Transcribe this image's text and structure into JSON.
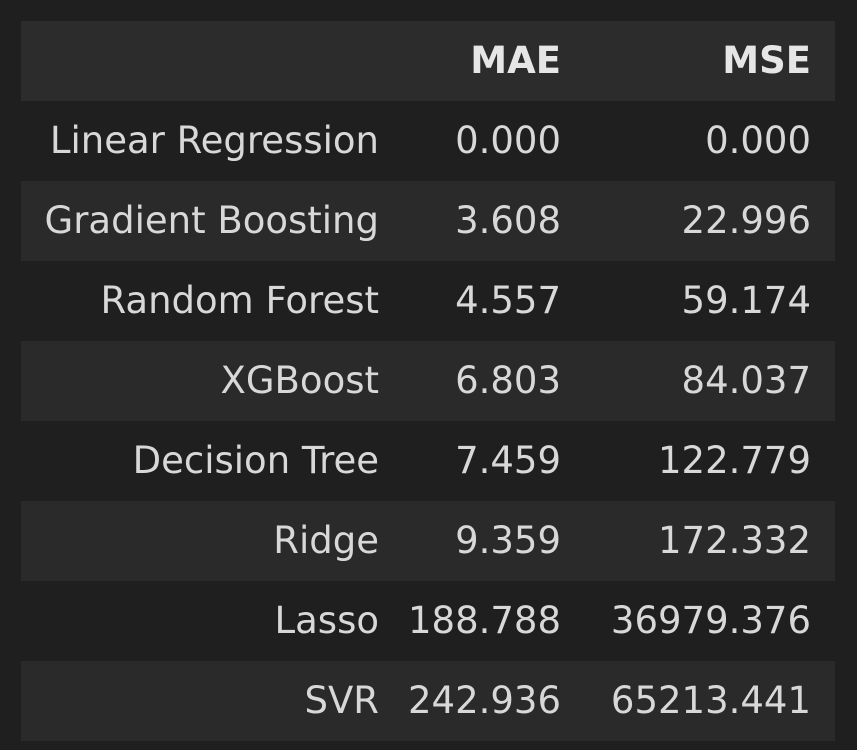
{
  "table": {
    "columns": [
      "",
      "MAE",
      "MSE"
    ],
    "rows": [
      {
        "model": "Linear Regression",
        "mae": "0.000",
        "mse": "0.000"
      },
      {
        "model": "Gradient Boosting",
        "mae": "3.608",
        "mse": "22.996"
      },
      {
        "model": "Random Forest",
        "mae": "4.557",
        "mse": "59.174"
      },
      {
        "model": "XGBoost",
        "mae": "6.803",
        "mse": "84.037"
      },
      {
        "model": "Decision Tree",
        "mae": "7.459",
        "mse": "122.779"
      },
      {
        "model": "Ridge",
        "mae": "9.359",
        "mse": "172.332"
      },
      {
        "model": "Lasso",
        "mae": "188.788",
        "mse": "36979.376"
      },
      {
        "model": "SVR",
        "mae": "242.936",
        "mse": "65213.441"
      }
    ]
  },
  "chart_data": {
    "type": "table",
    "columns": [
      "MAE",
      "MSE"
    ],
    "index": [
      "Linear Regression",
      "Gradient Boosting",
      "Random Forest",
      "XGBoost",
      "Decision Tree",
      "Ridge",
      "Lasso",
      "SVR"
    ],
    "values": [
      [
        0.0,
        0.0
      ],
      [
        3.608,
        22.996
      ],
      [
        4.557,
        59.174
      ],
      [
        6.803,
        84.037
      ],
      [
        7.459,
        122.779
      ],
      [
        9.359,
        172.332
      ],
      [
        188.788,
        36979.376
      ],
      [
        242.936,
        65213.441
      ]
    ]
  },
  "colors": {
    "background": "#1f1f1f",
    "header_row": "#2c2c2c",
    "alt_row": "#2a2a2a",
    "text": "#d8d8d8"
  }
}
